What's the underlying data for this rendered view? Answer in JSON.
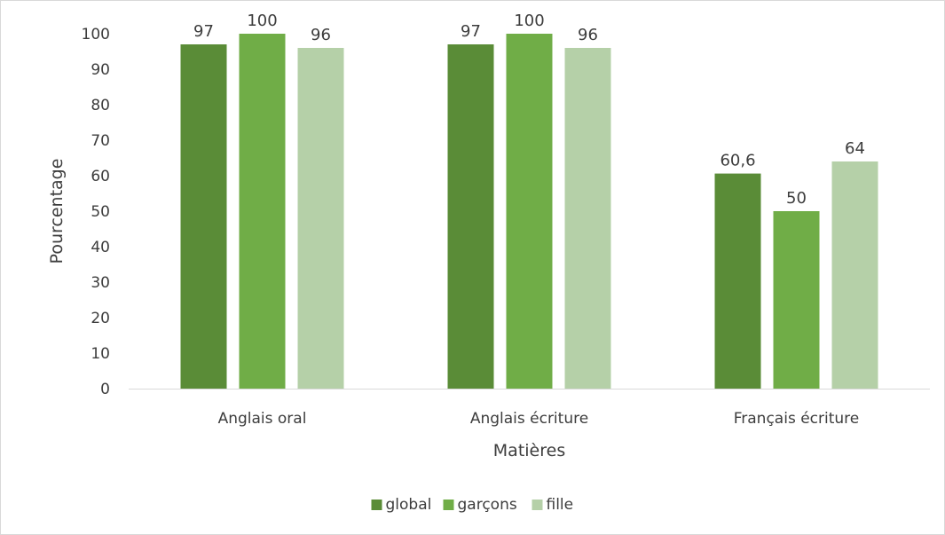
{
  "chart_data": {
    "type": "bar",
    "title": "",
    "xlabel": "Matières",
    "ylabel": "Pourcentage",
    "ylim": [
      0,
      100
    ],
    "ytick_step": 10,
    "yticks": [
      "0",
      "10",
      "20",
      "30",
      "40",
      "50",
      "60",
      "70",
      "80",
      "90",
      "100"
    ],
    "categories": [
      "Anglais oral",
      "Anglais écriture",
      "Français écriture"
    ],
    "series": [
      {
        "name": "global",
        "color": "#5a8c37",
        "values": [
          97,
          97,
          60.6
        ],
        "labels": [
          "97",
          "97",
          "60,6"
        ]
      },
      {
        "name": "garçons",
        "color": "#70ad47",
        "values": [
          100,
          100,
          50
        ],
        "labels": [
          "100",
          "100",
          "50"
        ]
      },
      {
        "name": "fille",
        "color": "#b5d0a8",
        "values": [
          96,
          96,
          64
        ],
        "labels": [
          "96",
          "96",
          "64"
        ]
      }
    ],
    "grid": false,
    "legend_position": "bottom",
    "data_labels": true
  }
}
